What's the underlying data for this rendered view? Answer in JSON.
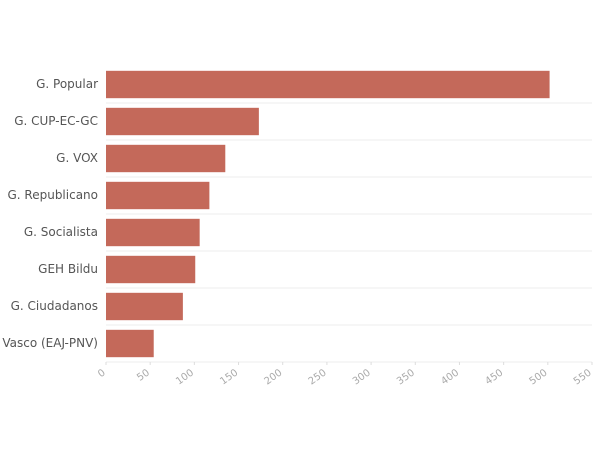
{
  "chart_data": {
    "type": "bar",
    "orientation": "horizontal",
    "categories": [
      "G. Popular",
      "G. CUP-EC-GC",
      "G. VOX",
      "G. Republicano",
      "G. Socialista",
      "GEH Bildu",
      "G. Ciudadanos",
      "G. Vasco (EAJ-PNV)"
    ],
    "values": [
      502,
      173,
      135,
      117,
      106,
      101,
      87,
      54
    ],
    "color": "#c4695a",
    "xlim": [
      0,
      550
    ],
    "xticks": [
      0,
      50,
      100,
      150,
      200,
      250,
      300,
      350,
      400,
      450,
      500,
      550
    ],
    "grid": true
  }
}
